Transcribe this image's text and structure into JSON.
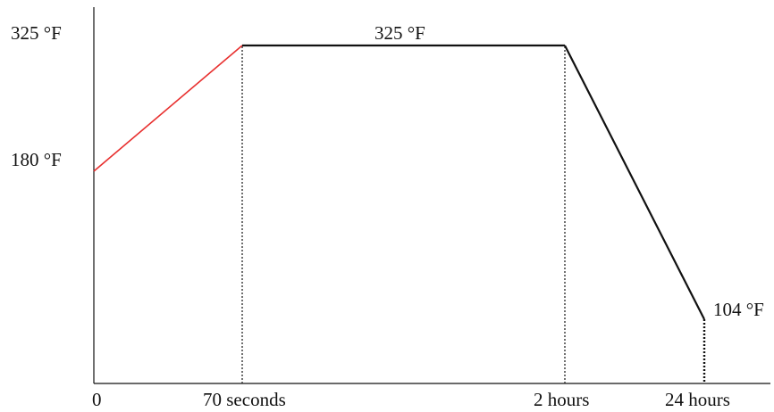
{
  "chart_data": {
    "type": "line",
    "title": "",
    "xlabel": "",
    "ylabel": "",
    "x_scale": "categorical-nonlinear",
    "x": [
      "0",
      "70 seconds",
      "2 hours",
      "24 hours"
    ],
    "y": [
      180,
      325,
      325,
      104
    ],
    "y_unit": "°F",
    "ylim": [
      104,
      325
    ],
    "grid": false,
    "legend": "none",
    "segments": [
      {
        "from": 0,
        "to": 1,
        "color": "#e8302f"
      },
      {
        "from": 1,
        "to": 2,
        "color": "#111111"
      },
      {
        "from": 2,
        "to": 3,
        "color": "#111111"
      }
    ],
    "x_tick_labels": [
      "0",
      "70 seconds",
      "2 hours",
      "24 hours"
    ],
    "y_tick_labels": [
      "325 °F",
      "180 °F"
    ],
    "annotations": [
      "325 °F",
      "104 °F"
    ]
  }
}
